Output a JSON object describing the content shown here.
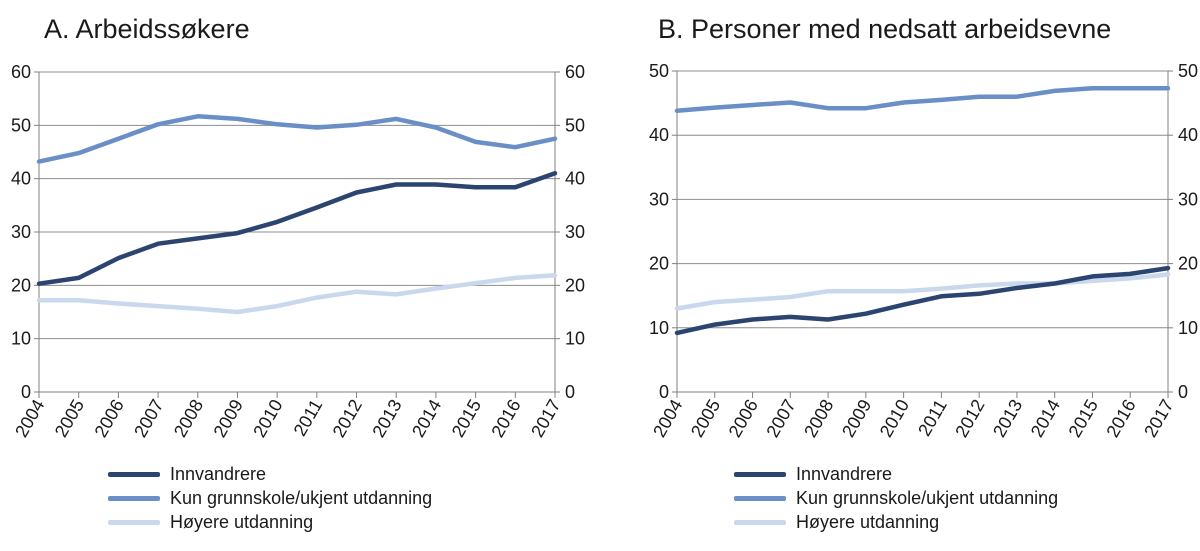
{
  "colors": {
    "innvandrere": "#2c4470",
    "grunnskole": "#6a8fc7",
    "hoyere": "#c9d8ec",
    "axis": "#808080",
    "grid": "#8c8c8c"
  },
  "legend": [
    {
      "name": "Innvandrere",
      "color": "#2c4470"
    },
    {
      "name": "Kun grunnskole/ukjent utdanning",
      "color": "#6a8fc7"
    },
    {
      "name": "Høyere utdanning",
      "color": "#c9d8ec"
    }
  ],
  "chart_data": [
    {
      "type": "line",
      "title": "A. Arbeidssøkere",
      "x": [
        "2004",
        "2005",
        "2006",
        "2007",
        "2008",
        "2009",
        "2010",
        "2011",
        "2012",
        "2013",
        "2014",
        "2015",
        "2016",
        "2017"
      ],
      "ylim": [
        0,
        60
      ],
      "yticks": [
        0,
        10,
        20,
        30,
        40,
        50,
        60
      ],
      "grid": true,
      "legend_position": "bottom",
      "series": [
        {
          "name": "Innvandrere",
          "color": "#2c4470",
          "values": [
            20.3,
            21.4,
            25.1,
            27.8,
            28.8,
            29.8,
            31.9,
            34.6,
            37.4,
            38.9,
            38.9,
            38.4,
            38.4,
            41.0
          ]
        },
        {
          "name": "Kun grunnskole/ukjent utdanning",
          "color": "#6a8fc7",
          "values": [
            43.2,
            44.8,
            47.5,
            50.2,
            51.7,
            51.2,
            50.2,
            49.6,
            50.1,
            51.2,
            49.6,
            46.9,
            45.9,
            47.5
          ]
        },
        {
          "name": "Høyere utdanning",
          "color": "#c9d8ec",
          "values": [
            17.2,
            17.2,
            16.6,
            16.1,
            15.6,
            15.0,
            16.1,
            17.7,
            18.8,
            18.3,
            19.4,
            20.4,
            21.4,
            21.9
          ]
        }
      ]
    },
    {
      "type": "line",
      "title": "B. Personer med nedsatt arbeidsevne",
      "x": [
        "2004",
        "2005",
        "2006",
        "2007",
        "2008",
        "2009",
        "2010",
        "2011",
        "2012",
        "2013",
        "2014",
        "2015",
        "2016",
        "2017"
      ],
      "ylim": [
        0,
        50
      ],
      "yticks": [
        0,
        10,
        20,
        30,
        40,
        50
      ],
      "grid": true,
      "legend_position": "bottom",
      "series": [
        {
          "name": "Innvandrere",
          "color": "#2c4470",
          "values": [
            9.2,
            10.5,
            11.3,
            11.7,
            11.3,
            12.2,
            13.6,
            14.9,
            15.3,
            16.2,
            16.9,
            18.0,
            18.4,
            19.3
          ]
        },
        {
          "name": "Kun grunnskole/ukjent utdanning",
          "color": "#6a8fc7",
          "values": [
            43.8,
            44.3,
            44.7,
            45.1,
            44.2,
            44.2,
            45.1,
            45.5,
            46.0,
            46.0,
            46.9,
            47.3,
            47.3,
            47.3
          ]
        },
        {
          "name": "Høyere utdanning",
          "color": "#c9d8ec",
          "values": [
            13.0,
            14.0,
            14.4,
            14.8,
            15.7,
            15.7,
            15.7,
            16.1,
            16.6,
            16.9,
            16.9,
            17.3,
            17.7,
            18.3
          ]
        }
      ]
    }
  ]
}
